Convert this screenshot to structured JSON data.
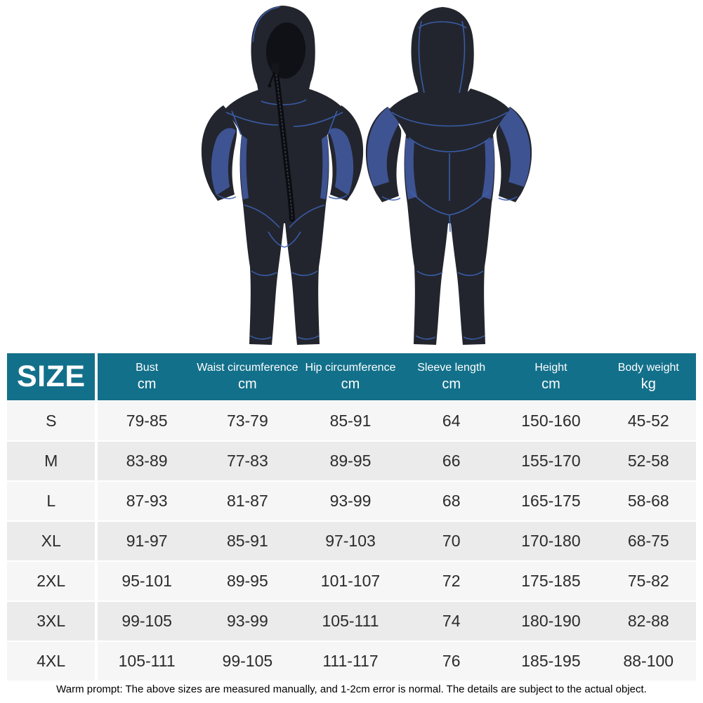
{
  "table": {
    "size_header": "SIZE",
    "columns": [
      {
        "label": "Bust",
        "unit": "cm"
      },
      {
        "label": "Waist circumference",
        "unit": "cm"
      },
      {
        "label": "Hip circumference",
        "unit": "cm"
      },
      {
        "label": "Sleeve length",
        "unit": "cm"
      },
      {
        "label": "Height",
        "unit": "cm"
      },
      {
        "label": "Body weight",
        "unit": "kg"
      }
    ],
    "rows": [
      {
        "size": "S",
        "values": [
          "79-85",
          "73-79",
          "85-91",
          "64",
          "150-160",
          "45-52"
        ]
      },
      {
        "size": "M",
        "values": [
          "83-89",
          "77-83",
          "89-95",
          "66",
          "155-170",
          "52-58"
        ]
      },
      {
        "size": "L",
        "values": [
          "87-93",
          "81-87",
          "93-99",
          "68",
          "165-175",
          "58-68"
        ]
      },
      {
        "size": "XL",
        "values": [
          "91-97",
          "85-91",
          "97-103",
          "70",
          "170-180",
          "68-75"
        ]
      },
      {
        "size": "2XL",
        "values": [
          "95-101",
          "89-95",
          "101-107",
          "72",
          "175-185",
          "75-82"
        ]
      },
      {
        "size": "3XL",
        "values": [
          "99-105",
          "93-99",
          "105-111",
          "74",
          "180-190",
          "82-88"
        ]
      },
      {
        "size": "4XL",
        "values": [
          "105-111",
          "99-105",
          "111-117",
          "76",
          "185-195",
          "88-100"
        ]
      }
    ]
  },
  "footer": {
    "note": "Warm prompt: The above sizes are measured manually, and 1-2cm error is normal. The details are subject to the actual object."
  },
  "colors": {
    "header_teal": "#13708a",
    "row_light": "#f6f6f6",
    "row_alt": "#ebebeb",
    "suit_body": "#23252e",
    "suit_panel": "#3e5392",
    "seam_blue": "#3b62b5"
  }
}
